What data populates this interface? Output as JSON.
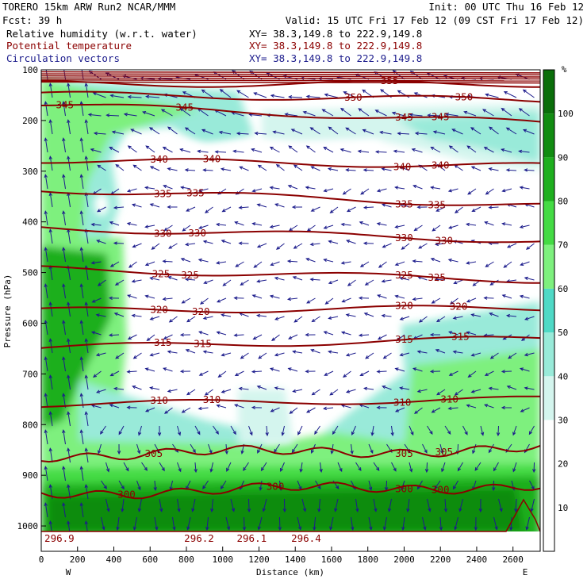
{
  "header": {
    "line1_left": "TORERO  15km ARW   Run2   NCAR/MMM",
    "line1_right": "Init: 00 UTC Thu 16 Feb 12",
    "line2_left": "Fcst:   39 h",
    "line2_right": "Valid: 15 UTC Fri 17 Feb 12 (09 CST Fri 17 Feb 12)",
    "fields": [
      {
        "name": "Relative humidity (w.r.t. water)",
        "xy": "XY=  38.3,149.8 to 222.9,149.8",
        "color": "#000000"
      },
      {
        "name": "Potential temperature",
        "xy": "XY=  38.3,149.8 to 222.9,149.8",
        "color": "#8b0000"
      },
      {
        "name": "Circulation vectors",
        "xy": "XY=  38.3,149.8 to 222.9,149.8",
        "color": "#1c1c8c"
      }
    ]
  },
  "chart_data": {
    "type": "cross-section",
    "xlabel": "Distance (km)",
    "ylabel": "Pressure (hPa)",
    "xlim": [
      0,
      2750
    ],
    "ylim": [
      1050,
      100
    ],
    "x_ticks": [
      0,
      200,
      400,
      600,
      800,
      1000,
      1200,
      1400,
      1600,
      1800,
      2000,
      2200,
      2400,
      2600
    ],
    "y_ticks": [
      100,
      200,
      300,
      400,
      500,
      600,
      700,
      800,
      900,
      1000
    ],
    "x_end_labels": {
      "left": "W",
      "right": "E"
    },
    "colorbar": {
      "unit": "%",
      "levels": [
        10,
        20,
        30,
        40,
        50,
        60,
        70,
        80,
        90,
        100
      ],
      "colors": [
        "#ffffff",
        "#ffffff",
        "#ffffff",
        "#d4f5ee",
        "#99ead9",
        "#4fd9c6",
        "#7ef07e",
        "#44db44",
        "#1eaf1e",
        "#118c11",
        "#0a6e0a"
      ]
    },
    "theta_contours": [
      {
        "value": 300,
        "p_left": 935,
        "p_right": 920,
        "labels": [
          {
            "x": 470,
            "text": "300"
          },
          {
            "x": 1290,
            "text": "300"
          },
          {
            "x": 2000,
            "text": "300"
          },
          {
            "x": 2200,
            "text": "300"
          }
        ]
      },
      {
        "value": 305,
        "p_left": 860,
        "p_right": 848,
        "labels": [
          {
            "x": 620,
            "text": "305"
          },
          {
            "x": 2000,
            "text": "305"
          },
          {
            "x": 2220,
            "text": "305"
          }
        ]
      },
      {
        "value": 310,
        "p_left": 760,
        "p_right": 750,
        "labels": [
          {
            "x": 650,
            "text": "310"
          },
          {
            "x": 940,
            "text": "310"
          },
          {
            "x": 1990,
            "text": "310"
          },
          {
            "x": 2250,
            "text": "310"
          }
        ]
      },
      {
        "value": 315,
        "p_left": 648,
        "p_right": 630,
        "labels": [
          {
            "x": 670,
            "text": "315"
          },
          {
            "x": 890,
            "text": "315"
          },
          {
            "x": 2000,
            "text": "315"
          },
          {
            "x": 2310,
            "text": "315"
          }
        ]
      },
      {
        "value": 320,
        "p_left": 575,
        "p_right": 570,
        "labels": [
          {
            "x": 650,
            "text": "320"
          },
          {
            "x": 880,
            "text": "320"
          },
          {
            "x": 2000,
            "text": "320"
          },
          {
            "x": 2300,
            "text": "320"
          }
        ]
      },
      {
        "value": 325,
        "p_left": 493,
        "p_right": 515,
        "labels": [
          {
            "x": 660,
            "text": "325"
          },
          {
            "x": 820,
            "text": "325"
          },
          {
            "x": 2000,
            "text": "325"
          },
          {
            "x": 2180,
            "text": "325"
          }
        ]
      },
      {
        "value": 330,
        "p_left": 412,
        "p_right": 437,
        "labels": [
          {
            "x": 670,
            "text": "330"
          },
          {
            "x": 860,
            "text": "330"
          },
          {
            "x": 2000,
            "text": "330"
          },
          {
            "x": 2220,
            "text": "330"
          }
        ]
      },
      {
        "value": 335,
        "p_left": 336,
        "p_right": 368,
        "labels": [
          {
            "x": 670,
            "text": "335"
          },
          {
            "x": 850,
            "text": "335"
          },
          {
            "x": 2000,
            "text": "335"
          },
          {
            "x": 2180,
            "text": "335"
          }
        ]
      },
      {
        "value": 340,
        "p_left": 278,
        "p_right": 290,
        "labels": [
          {
            "x": 650,
            "text": "340"
          },
          {
            "x": 940,
            "text": "340"
          },
          {
            "x": 1990,
            "text": "340"
          },
          {
            "x": 2200,
            "text": "340"
          }
        ]
      },
      {
        "value": 345,
        "p_left": 168,
        "p_right": 205,
        "labels": [
          {
            "x": 130,
            "text": "345"
          },
          {
            "x": 790,
            "text": "345"
          },
          {
            "x": 2000,
            "text": "345"
          },
          {
            "x": 2200,
            "text": "345"
          }
        ]
      },
      {
        "value": 350,
        "p_left": 148,
        "p_right": 160,
        "labels": [
          {
            "x": 1720,
            "text": "350"
          },
          {
            "x": 2330,
            "text": "350"
          }
        ]
      },
      {
        "value": 355,
        "p_left": 128,
        "p_right": 128,
        "labels": [
          {
            "x": 1920,
            "text": "355"
          }
        ]
      }
    ],
    "surface_theta_labels": [
      {
        "x": 100,
        "text": "296.9"
      },
      {
        "x": 870,
        "text": "296.2"
      },
      {
        "x": 1160,
        "text": "296.1"
      },
      {
        "x": 1460,
        "text": "296.4"
      }
    ]
  }
}
